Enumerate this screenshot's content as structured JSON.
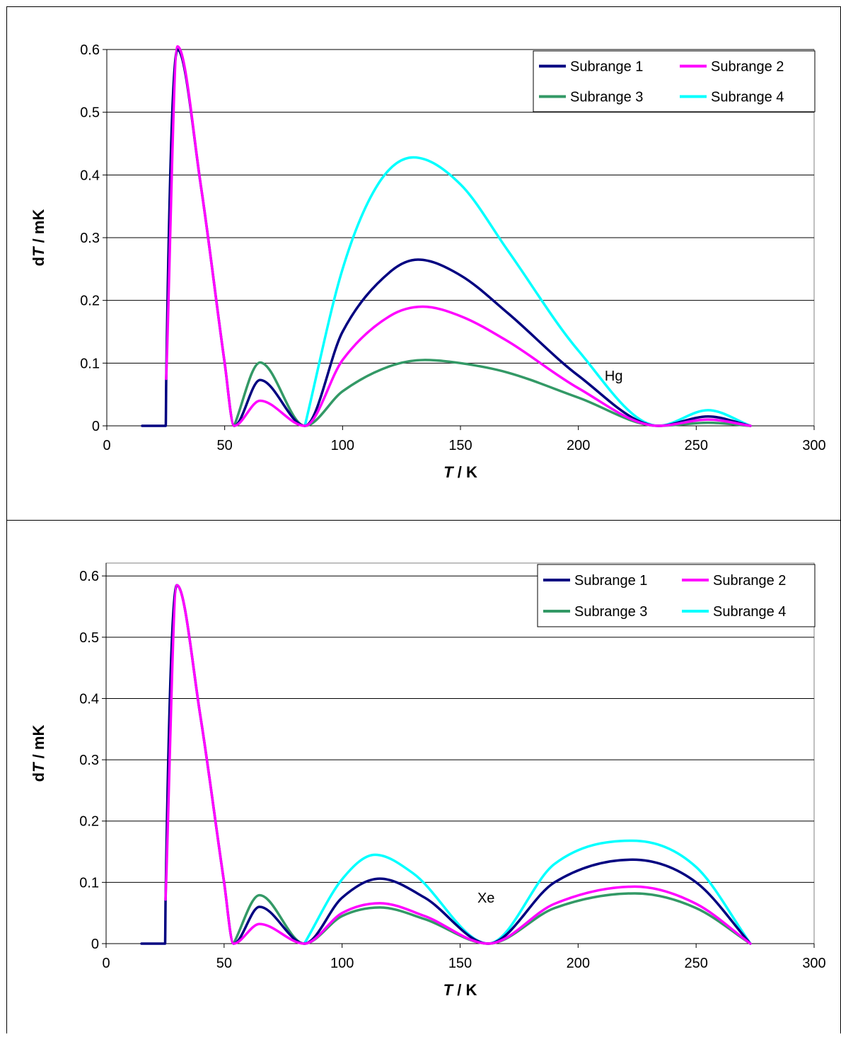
{
  "colors": {
    "subrange_1": "#000080",
    "subrange_2": "#ff00ff",
    "subrange_3": "#339966",
    "subrange_4": "#00ffff",
    "grid": "#000000",
    "background": "#ffffff"
  },
  "chart_data": [
    {
      "type": "line",
      "annotation": "Hg",
      "xlabel": {
        "var": "T",
        "unit": " / K"
      },
      "ylabel": {
        "pre": "d",
        "var": "T",
        "unit": " / mK"
      },
      "xlim": [
        0,
        300
      ],
      "ylim": [
        0,
        0.6
      ],
      "xticks": [
        0,
        50,
        100,
        150,
        200,
        250,
        300
      ],
      "yticks": [
        0,
        0.1,
        0.2,
        0.3,
        0.4,
        0.5,
        0.6
      ],
      "grid": "horizontal",
      "legend_position": "top-right",
      "legend": [
        "Subrange 1",
        "Subrange 2",
        "Subrange 3",
        "Subrange 4"
      ],
      "series": [
        {
          "name": "Subrange 1",
          "x": [
            15,
            25,
            25.2,
            30,
            40,
            50,
            54,
            65,
            84,
            100,
            120,
            132,
            150,
            170,
            200,
            234,
            255,
            273
          ],
          "y": [
            0,
            0,
            0.075,
            0.6,
            0.38,
            0.1,
            0,
            0.073,
            0,
            0.15,
            0.245,
            0.265,
            0.24,
            0.18,
            0.08,
            0,
            0.015,
            0
          ]
        },
        {
          "name": "Subrange 2",
          "x": [
            25.2,
            30,
            40,
            50,
            54,
            65,
            84,
            100,
            120,
            134,
            150,
            170,
            200,
            234,
            255,
            273
          ],
          "y": [
            0.075,
            0.605,
            0.38,
            0.1,
            0,
            0.04,
            0,
            0.105,
            0.175,
            0.19,
            0.175,
            0.135,
            0.06,
            0,
            0.01,
            0
          ]
        },
        {
          "name": "Subrange 3",
          "x": [
            54,
            65,
            84,
            100,
            120,
            135,
            150,
            170,
            200,
            234,
            255,
            273
          ],
          "y": [
            0,
            0.101,
            0,
            0.055,
            0.095,
            0.105,
            0.1,
            0.085,
            0.045,
            0,
            0.005,
            0
          ]
        },
        {
          "name": "Subrange 4",
          "x": [
            84,
            100,
            115,
            130,
            150,
            170,
            200,
            234,
            255,
            273
          ],
          "y": [
            0,
            0.25,
            0.385,
            0.428,
            0.385,
            0.28,
            0.12,
            0,
            0.025,
            0
          ]
        }
      ]
    },
    {
      "type": "line",
      "annotation": "Xe",
      "xlabel": {
        "var": "T",
        "unit": " / K"
      },
      "ylabel": {
        "pre": "d",
        "var": "T",
        "unit": " / mK"
      },
      "xlim": [
        0,
        300
      ],
      "ylim": [
        0,
        0.6
      ],
      "xticks": [
        0,
        50,
        100,
        150,
        200,
        250,
        300
      ],
      "yticks": [
        0,
        0.1,
        0.2,
        0.3,
        0.4,
        0.5,
        0.6
      ],
      "grid": "horizontal",
      "legend_position": "top-right",
      "legend": [
        "Subrange 1",
        "Subrange 2",
        "Subrange 3",
        "Subrange 4"
      ],
      "series": [
        {
          "name": "Subrange 1",
          "x": [
            15,
            25,
            25.2,
            30,
            40,
            50,
            54,
            65,
            84,
            100,
            116,
            135,
            162,
            190,
            223,
            250,
            273
          ],
          "y": [
            0,
            0,
            0.072,
            0.585,
            0.37,
            0.1,
            0,
            0.06,
            0,
            0.075,
            0.106,
            0.075,
            0,
            0.1,
            0.137,
            0.1,
            0
          ]
        },
        {
          "name": "Subrange 2",
          "x": [
            25.2,
            30,
            40,
            50,
            54,
            65,
            84,
            100,
            116,
            135,
            162,
            190,
            224,
            250,
            273
          ],
          "y": [
            0.072,
            0.585,
            0.37,
            0.1,
            0,
            0.032,
            0,
            0.05,
            0.066,
            0.045,
            0,
            0.065,
            0.093,
            0.065,
            0
          ]
        },
        {
          "name": "Subrange 3",
          "x": [
            54,
            65,
            84,
            100,
            116,
            135,
            162,
            190,
            224,
            250,
            273
          ],
          "y": [
            0,
            0.079,
            0,
            0.045,
            0.059,
            0.04,
            0,
            0.058,
            0.082,
            0.058,
            0
          ]
        },
        {
          "name": "Subrange 4",
          "x": [
            84,
            100,
            114,
            130,
            162,
            190,
            223,
            250,
            273
          ],
          "y": [
            0,
            0.105,
            0.145,
            0.115,
            0,
            0.13,
            0.168,
            0.125,
            0
          ]
        }
      ]
    }
  ]
}
